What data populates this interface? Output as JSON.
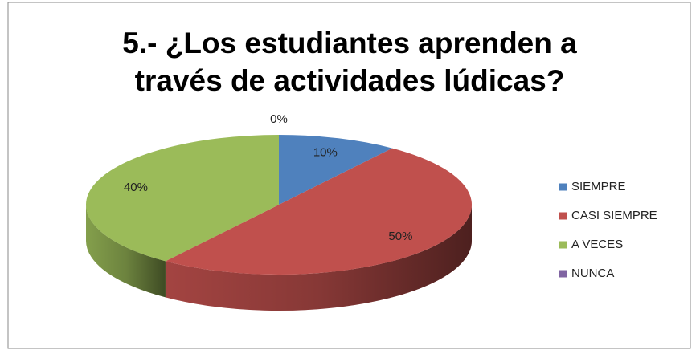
{
  "chart_data": {
    "type": "pie",
    "title": "5.- ¿Los estudiantes aprenden a través de actividades lúdicas?",
    "categories": [
      "SIEMPRE",
      "CASI SIEMPRE",
      "A VECES",
      "NUNCA"
    ],
    "values": [
      10,
      50,
      40,
      0
    ],
    "value_labels": [
      "10%",
      "50%",
      "40%",
      "0%"
    ],
    "colors": [
      "#4f81bd",
      "#c0504d",
      "#9bbb59",
      "#8064a2"
    ],
    "legend": "right"
  }
}
